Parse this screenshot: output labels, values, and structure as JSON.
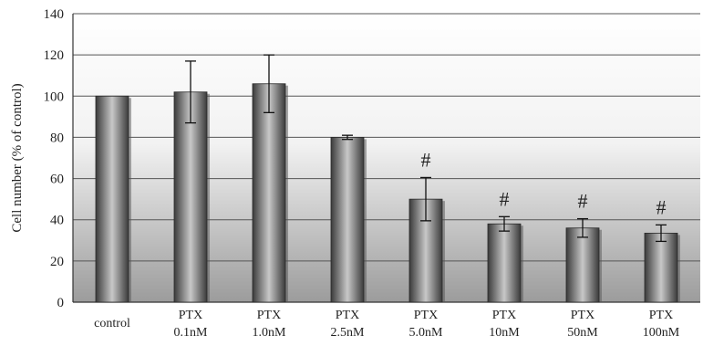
{
  "chart_data": {
    "type": "bar",
    "title": "",
    "xlabel": "",
    "ylabel": "Cell number (% of control)",
    "ylim": [
      0,
      140
    ],
    "yticks": [
      0,
      20,
      40,
      60,
      80,
      100,
      120,
      140
    ],
    "grid": true,
    "categories": [
      [
        "control"
      ],
      [
        "PTX",
        "0.1nM"
      ],
      [
        "PTX",
        "1.0nM"
      ],
      [
        "PTX",
        "2.5nM"
      ],
      [
        "PTX",
        "5.0nM"
      ],
      [
        "PTX",
        "10nM"
      ],
      [
        "PTX",
        "50nM"
      ],
      [
        "PTX",
        "100nM"
      ]
    ],
    "values": [
      100,
      102,
      106,
      80,
      50,
      38,
      36,
      33.5
    ],
    "errors": [
      0,
      15,
      14,
      1,
      10.5,
      3.5,
      4.5,
      4
    ],
    "annotations": [
      "",
      "",
      "",
      "",
      "#",
      "#",
      "#",
      "#"
    ],
    "colors": {
      "bar_dark": "#3a3a3a",
      "bar_light": "#c8c8c8"
    }
  }
}
